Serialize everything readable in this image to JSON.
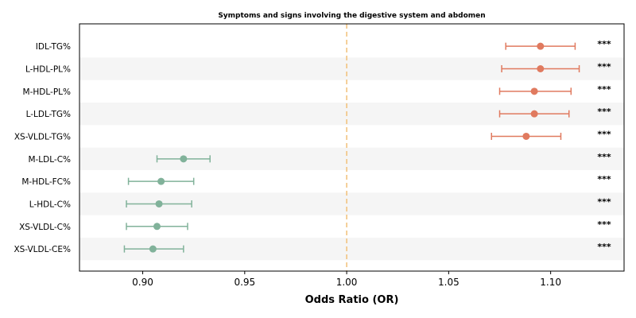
{
  "chart_data": {
    "type": "forest",
    "title": "Symptoms and signs involving the digestive system and abdomen",
    "xlabel": "Odds Ratio (OR)",
    "ylabel": "",
    "xlim": [
      0.869,
      1.136
    ],
    "xticks": [
      0.9,
      0.95,
      1.0,
      1.05,
      1.1
    ],
    "xtick_labels": [
      "0.90",
      "0.95",
      "1.00",
      "1.05",
      "1.10"
    ],
    "reference_line": 1.0,
    "colors": {
      "positive": "#e07a5f",
      "negative": "#81b29a",
      "reference": "#f2c078",
      "band": "#f5f5f5"
    },
    "grid": false,
    "rows": [
      {
        "label": "IDL-TG%",
        "or": 1.095,
        "lower": 1.078,
        "upper": 1.112,
        "sig": "***"
      },
      {
        "label": "L-HDL-PL%",
        "or": 1.095,
        "lower": 1.076,
        "upper": 1.114,
        "sig": "***"
      },
      {
        "label": "M-HDL-PL%",
        "or": 1.092,
        "lower": 1.075,
        "upper": 1.11,
        "sig": "***"
      },
      {
        "label": "L-LDL-TG%",
        "or": 1.092,
        "lower": 1.075,
        "upper": 1.109,
        "sig": "***"
      },
      {
        "label": "XS-VLDL-TG%",
        "or": 1.088,
        "lower": 1.071,
        "upper": 1.105,
        "sig": "***"
      },
      {
        "label": "M-LDL-C%",
        "or": 0.92,
        "lower": 0.907,
        "upper": 0.933,
        "sig": "***"
      },
      {
        "label": "M-HDL-FC%",
        "or": 0.909,
        "lower": 0.893,
        "upper": 0.925,
        "sig": "***"
      },
      {
        "label": "L-HDL-C%",
        "or": 0.908,
        "lower": 0.892,
        "upper": 0.924,
        "sig": "***"
      },
      {
        "label": "XS-VLDL-C%",
        "or": 0.907,
        "lower": 0.892,
        "upper": 0.922,
        "sig": "***"
      },
      {
        "label": "XS-VLDL-CE%",
        "or": 0.905,
        "lower": 0.891,
        "upper": 0.92,
        "sig": "***"
      }
    ]
  }
}
